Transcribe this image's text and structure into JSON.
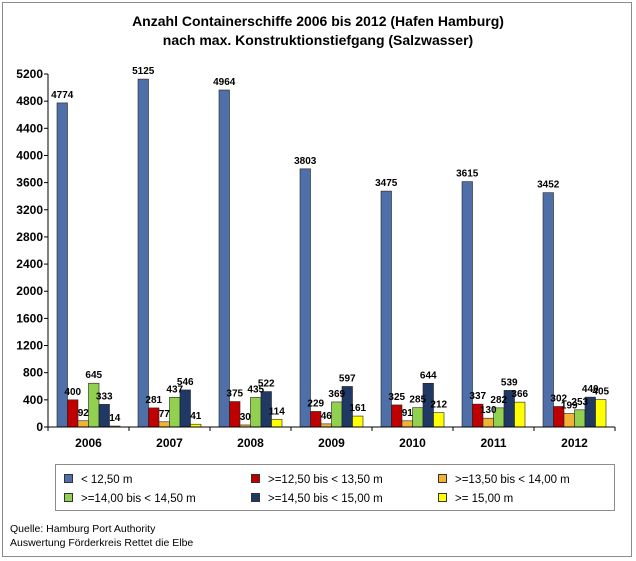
{
  "chart_data": {
    "type": "bar",
    "title_line1": "Anzahl Containerschiffe 2006 bis 2012 (Hafen Hamburg)",
    "title_line2": "nach max. Konstruktionstiefgang (Salzwasser)",
    "categories": [
      "2006",
      "2007",
      "2008",
      "2009",
      "2010",
      "2011",
      "2012"
    ],
    "series": [
      {
        "name": "< 12,50 m",
        "color": "#4f6fa8",
        "values": [
          4774,
          5125,
          4964,
          3803,
          3475,
          3615,
          3452
        ]
      },
      {
        "name": ">=12,50 bis < 13,50 m",
        "color": "#c00000",
        "values": [
          400,
          281,
          375,
          229,
          325,
          337,
          302
        ]
      },
      {
        "name": ">=13,50 bis < 14,00 m",
        "color": "#f2b234",
        "values": [
          92,
          77,
          30,
          46,
          91,
          130,
          199
        ]
      },
      {
        "name": ">=14,00 bis < 14,50 m",
        "color": "#92d050",
        "values": [
          645,
          437,
          435,
          369,
          285,
          282,
          253
        ]
      },
      {
        "name": ">=14,50 bis < 15,00 m",
        "color": "#1f3864",
        "values": [
          333,
          546,
          522,
          597,
          644,
          539,
          440
        ]
      },
      {
        "name": ">= 15,00 m",
        "color": "#ffff00",
        "values": [
          14,
          41,
          114,
          161,
          212,
          366,
          405
        ]
      }
    ],
    "ylim": [
      0,
      5200
    ],
    "yticks": [
      0,
      400,
      800,
      1200,
      1600,
      2000,
      2400,
      2800,
      3200,
      3600,
      4000,
      4400,
      4800,
      5200
    ],
    "grid": false,
    "legend_position": "bottom"
  },
  "source": {
    "line1": "Quelle: Hamburg Port Authority",
    "line2": "Auswertung Förderkreis Rettet die Elbe"
  }
}
